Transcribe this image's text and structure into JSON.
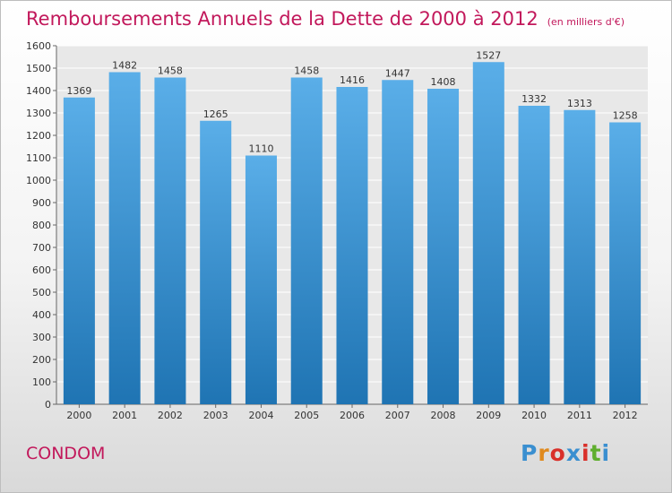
{
  "title": "Remboursements Annuels de la Dette de 2000 à 2012",
  "unit": "(en milliers d'€)",
  "town": "CONDOM",
  "brand": "Proxiti",
  "colors": {
    "title": "#c2185b",
    "bar_top": "#5aaee8",
    "bar_bottom": "#1f74b3",
    "logo": [
      "#3a8fd0",
      "#e08a1e",
      "#d9302a",
      "#3a8fd0",
      "#d9302a",
      "#5fae2e",
      "#3a8fd0"
    ]
  },
  "chart_data": {
    "type": "bar",
    "categories": [
      "2000",
      "2001",
      "2002",
      "2003",
      "2004",
      "2005",
      "2006",
      "2007",
      "2008",
      "2009",
      "2010",
      "2011",
      "2012"
    ],
    "values": [
      1369,
      1482,
      1458,
      1265,
      1110,
      1458,
      1416,
      1447,
      1408,
      1527,
      1332,
      1313,
      1258
    ],
    "ylim": [
      0,
      1600
    ],
    "yticks": [
      0,
      100,
      200,
      300,
      400,
      500,
      600,
      700,
      800,
      900,
      1000,
      1100,
      1200,
      1300,
      1400,
      1500,
      1600
    ],
    "grid": true,
    "xlabel": "",
    "ylabel": ""
  }
}
